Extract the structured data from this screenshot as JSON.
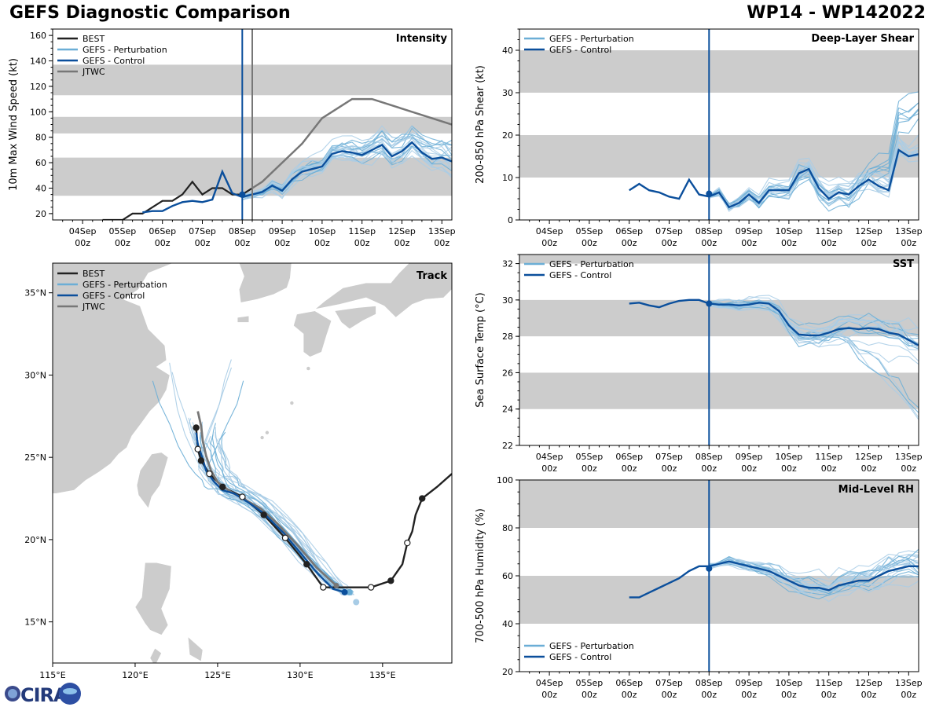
{
  "header": {
    "title": "GEFS Diagnostic Comparison",
    "storm": "WP14 - WP142022"
  },
  "colors": {
    "best": "#222222",
    "perturbation": "#6baed6",
    "perturbation_light": "#a8cce6",
    "control": "#0b4f9c",
    "jtwc": "#777777",
    "band": "#cccccc",
    "land": "#cccccc"
  },
  "time_axis": {
    "ticks": [
      {
        "day": "04Sep",
        "hour": "00z"
      },
      {
        "day": "05Sep",
        "hour": "00z"
      },
      {
        "day": "06Sep",
        "hour": "00z"
      },
      {
        "day": "07Sep",
        "hour": "00z"
      },
      {
        "day": "08Sep",
        "hour": "00z"
      },
      {
        "day": "09Sep",
        "hour": "00z"
      },
      {
        "day": "10Sep",
        "hour": "00z"
      },
      {
        "day": "11Sep",
        "hour": "00z"
      },
      {
        "day": "12Sep",
        "hour": "00z"
      },
      {
        "day": "13Sep",
        "hour": "00z"
      }
    ],
    "range_days": [
      -4.75,
      5.25
    ],
    "init_day": 0
  },
  "chart_data": [
    {
      "id": "intensity",
      "type": "line",
      "title": "Intensity",
      "ylabel": "10m Max Wind Speed (kt)",
      "ylim": [
        15,
        165
      ],
      "yticks": [
        20,
        40,
        60,
        80,
        100,
        120,
        140,
        160
      ],
      "bands": [
        [
          34,
          64
        ],
        [
          83,
          96
        ],
        [
          113,
          137
        ]
      ],
      "legend": [
        "BEST",
        "GEFS - Perturbation",
        "GEFS - Control",
        "JTWC"
      ],
      "best": {
        "x": [
          -3.5,
          -3.0,
          -2.75,
          -2.5,
          -2.25,
          -2.0,
          -1.75,
          -1.5,
          -1.25,
          -1.0,
          -0.75,
          -0.5,
          -0.25,
          0.0,
          0.25
        ],
        "y": [
          15,
          15,
          20,
          20,
          25,
          30,
          30,
          35,
          45,
          35,
          40,
          40,
          35,
          35,
          40
        ]
      },
      "control": {
        "x": [
          -2.5,
          -2.25,
          -2.0,
          -1.75,
          -1.5,
          -1.25,
          -1.0,
          -0.75,
          -0.5,
          -0.25,
          0.0,
          0.25,
          0.5,
          0.75,
          1.0,
          1.25,
          1.5,
          1.75,
          2.0,
          2.25,
          2.5,
          2.75,
          3.0,
          3.25,
          3.5,
          3.75,
          4.0,
          4.25,
          4.5,
          4.75,
          5.0,
          5.25
        ],
        "y": [
          21,
          22,
          22,
          26,
          29,
          30,
          29,
          31,
          53,
          36,
          33,
          35,
          37,
          42,
          38,
          47,
          53,
          55,
          57,
          67,
          69,
          68,
          66,
          70,
          74,
          65,
          69,
          76,
          68,
          63,
          64,
          61
        ]
      },
      "jtwc": {
        "x": [
          0.25,
          0.5,
          1.0,
          1.5,
          2.0,
          2.25,
          2.75,
          3.25,
          5.25
        ],
        "y": [
          40,
          45,
          60,
          75,
          95,
          100,
          110,
          110,
          90
        ]
      },
      "init_value": 35,
      "jtwc_init_line_day": 0.25,
      "perturbation_ranges": {
        "start": 0.0,
        "spread": 14
      }
    },
    {
      "id": "shear",
      "type": "line",
      "title": "Deep-Layer Shear",
      "ylabel": "200-850 hPa Shear (kt)",
      "ylim": [
        0,
        45
      ],
      "yticks": [
        0,
        10,
        20,
        30,
        40
      ],
      "bands": [
        [
          10,
          20
        ],
        [
          30,
          40
        ]
      ],
      "legend": [
        "GEFS - Perturbation",
        "GEFS - Control"
      ],
      "control": {
        "x": [
          -2.0,
          -1.75,
          -1.5,
          -1.25,
          -1.0,
          -0.75,
          -0.5,
          -0.25,
          0.0,
          0.25,
          0.5,
          0.75,
          1.0,
          1.25,
          1.5,
          1.75,
          2.0,
          2.25,
          2.5,
          2.75,
          3.0,
          3.25,
          3.5,
          3.75,
          4.0,
          4.25,
          4.5,
          4.75,
          5.0,
          5.25
        ],
        "y": [
          7,
          8.5,
          7,
          6.5,
          5.5,
          5,
          9.5,
          6,
          5.5,
          6.5,
          3,
          4,
          6,
          4,
          7,
          7,
          7,
          11,
          12,
          7.5,
          5,
          6.5,
          6,
          8,
          9.5,
          8,
          7,
          16.5,
          15,
          15.5
        ]
      },
      "init_value": 6.2
    },
    {
      "id": "sst",
      "type": "line",
      "title": "SST",
      "ylabel": "Sea Surface Temp (°C)",
      "ylim": [
        22,
        32.5
      ],
      "yticks": [
        22,
        24,
        26,
        28,
        30,
        32
      ],
      "bands": [
        [
          24,
          26
        ],
        [
          28,
          30
        ],
        [
          32,
          33
        ]
      ],
      "legend": [
        "GEFS - Perturbation",
        "GEFS - Control"
      ],
      "control": {
        "x": [
          -2.0,
          -1.75,
          -1.5,
          -1.25,
          -1.0,
          -0.75,
          -0.5,
          -0.25,
          0.0,
          0.25,
          0.5,
          0.75,
          1.0,
          1.25,
          1.5,
          1.75,
          2.0,
          2.25,
          2.5,
          2.75,
          3.0,
          3.25,
          3.5,
          3.75,
          4.0,
          4.25,
          4.5,
          4.75,
          5.0,
          5.25
        ],
        "y": [
          29.8,
          29.85,
          29.7,
          29.6,
          29.8,
          29.95,
          30.0,
          30.0,
          29.8,
          29.75,
          29.75,
          29.7,
          29.75,
          29.85,
          29.8,
          29.4,
          28.6,
          28.1,
          28.05,
          28.05,
          28.2,
          28.4,
          28.45,
          28.4,
          28.45,
          28.4,
          28.2,
          28.1,
          27.8,
          27.5
        ]
      },
      "init_value": 29.8
    },
    {
      "id": "rh",
      "type": "line",
      "title": "Mid-Level RH",
      "ylabel": "700-500 hPa Humidity (%)",
      "ylim": [
        20,
        100
      ],
      "yticks": [
        20,
        40,
        60,
        80,
        100
      ],
      "bands": [
        [
          40,
          60
        ],
        [
          80,
          100
        ]
      ],
      "legend": [
        "GEFS - Perturbation",
        "GEFS - Control"
      ],
      "control": {
        "x": [
          -2.0,
          -1.75,
          -1.5,
          -1.25,
          -1.0,
          -0.75,
          -0.5,
          -0.25,
          0.0,
          0.25,
          0.5,
          0.75,
          1.0,
          1.25,
          1.5,
          1.75,
          2.0,
          2.25,
          2.5,
          2.75,
          3.0,
          3.25,
          3.5,
          3.75,
          4.0,
          4.25,
          4.5,
          4.75,
          5.0,
          5.25
        ],
        "y": [
          51,
          51,
          53,
          55,
          57,
          59,
          62,
          64,
          64,
          65,
          66,
          65,
          64,
          63,
          62,
          60,
          58,
          56,
          55,
          55,
          54,
          56,
          57,
          58,
          58,
          60,
          62,
          63,
          64,
          64
        ]
      },
      "init_value": 63
    },
    {
      "id": "track",
      "type": "scatter",
      "title": "Track",
      "lon_range": [
        115,
        139.2
      ],
      "lat_range": [
        12.5,
        36.8
      ],
      "xticks": [
        {
          "v": 115,
          "label": "115°E"
        },
        {
          "v": 120,
          "label": "120°E"
        },
        {
          "v": 125,
          "label": "125°E"
        },
        {
          "v": 130,
          "label": "130°E"
        },
        {
          "v": 135,
          "label": "135°E"
        }
      ],
      "yticks": [
        {
          "v": 15,
          "label": "15°N"
        },
        {
          "v": 20,
          "label": "20°N"
        },
        {
          "v": 25,
          "label": "25°N"
        },
        {
          "v": 30,
          "label": "30°N"
        },
        {
          "v": 35,
          "label": "35°N"
        }
      ],
      "legend": [
        "BEST",
        "GEFS - Perturbation",
        "GEFS - Control",
        "JTWC"
      ],
      "best": {
        "lon": [
          139.2,
          138.3,
          137.4,
          137.0,
          136.8,
          136.5,
          136.2,
          135.5,
          134.3,
          133.1,
          131.4,
          130.4,
          129.1,
          127.8,
          126.5,
          125.3,
          124.5,
          124.0,
          123.8,
          123.7
        ],
        "lat": [
          24.0,
          23.2,
          22.5,
          21.5,
          20.5,
          19.8,
          18.5,
          17.5,
          17.1,
          17.1,
          17.1,
          18.5,
          20.1,
          21.5,
          22.6,
          23.2,
          24.0,
          24.8,
          25.5,
          26.8
        ]
      },
      "control": {
        "lon": [
          132.7,
          132.0,
          131.1,
          130.1,
          129.0,
          127.8,
          126.8,
          126.0,
          125.3,
          124.8,
          124.3,
          124.1,
          123.8,
          123.7
        ],
        "lat": [
          16.8,
          17.0,
          17.9,
          19.1,
          20.4,
          21.6,
          22.3,
          22.8,
          23.0,
          23.5,
          24.2,
          24.9,
          25.8,
          26.5
        ]
      },
      "jtwc": {
        "lon": [
          132.2,
          131.0,
          129.9,
          128.6,
          127.6,
          126.7,
          125.8,
          125.0,
          124.6,
          124.3,
          124.1,
          124.0,
          123.8
        ],
        "lat": [
          17.2,
          18.3,
          19.6,
          21.0,
          21.9,
          22.4,
          22.9,
          23.5,
          24.2,
          25.1,
          26.0,
          26.9,
          27.8
        ]
      }
    }
  ],
  "logo": {
    "text": "CIRA"
  }
}
